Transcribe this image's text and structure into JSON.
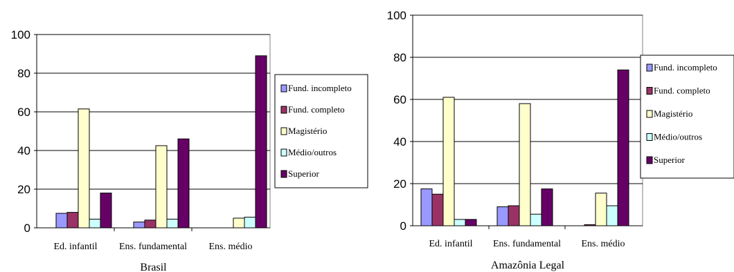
{
  "chart_data": [
    {
      "type": "bar",
      "xlabel": "Brasil",
      "ylabel": "",
      "ylim": [
        0,
        100
      ],
      "yticks": [
        0,
        20,
        40,
        60,
        80,
        100
      ],
      "grid": true,
      "legend_position": "right",
      "categories": [
        "Ed. infantil",
        "Ens. fundamental",
        "Ens. médio"
      ],
      "series": [
        {
          "name": "Fund. incompleto",
          "color": "#9999FF",
          "values": [
            7.5,
            3,
            0
          ]
        },
        {
          "name": "Fund. completo",
          "color": "#993366",
          "values": [
            8,
            4,
            0
          ]
        },
        {
          "name": "Magistério",
          "color": "#FFFFCC",
          "values": [
            61.5,
            42.5,
            5
          ]
        },
        {
          "name": "Médio/outros",
          "color": "#CCFFFF",
          "values": [
            4.5,
            4.5,
            5.5
          ]
        },
        {
          "name": "Superior",
          "color": "#660066",
          "values": [
            18,
            46,
            89
          ]
        }
      ]
    },
    {
      "type": "bar",
      "xlabel": "Amazônia Legal",
      "ylabel": "",
      "ylim": [
        0,
        100
      ],
      "yticks": [
        0,
        20,
        40,
        60,
        80,
        100
      ],
      "grid": true,
      "legend_position": "right",
      "categories": [
        "Ed. infantil",
        "Ens. fundamental",
        "Ens. médio"
      ],
      "series": [
        {
          "name": "Fund. incompleto",
          "color": "#9999FF",
          "values": [
            17.5,
            9,
            0
          ]
        },
        {
          "name": "Fund. completo",
          "color": "#993366",
          "values": [
            15,
            9.5,
            0.5
          ]
        },
        {
          "name": "Magistério",
          "color": "#FFFFCC",
          "values": [
            61,
            58,
            15.5
          ]
        },
        {
          "name": "Médio/outros",
          "color": "#CCFFFF",
          "values": [
            3,
            5.5,
            9.5
          ]
        },
        {
          "name": "Superior",
          "color": "#660066",
          "values": [
            3,
            17.5,
            74
          ]
        }
      ]
    }
  ]
}
